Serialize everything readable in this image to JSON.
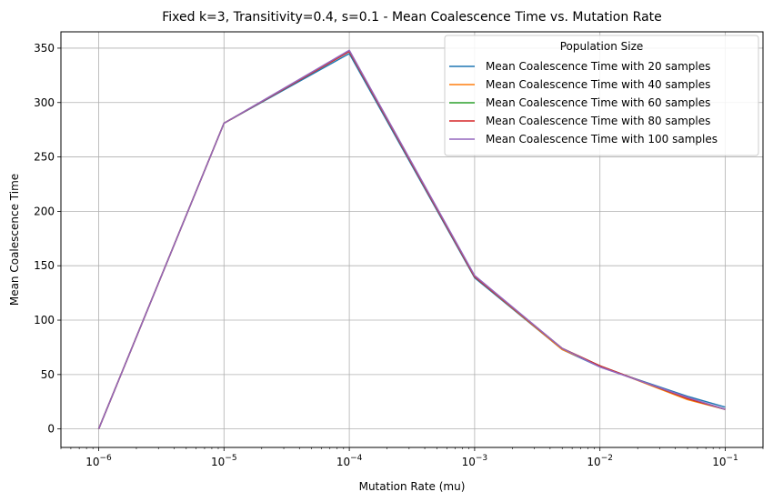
{
  "chart_data": {
    "type": "line",
    "title": "Fixed k=3, Transitivity=0.4, s=0.1 - Mean Coalescence Time vs. Mutation Rate",
    "xlabel": "Mutation Rate (mu)",
    "ylabel": "Mean Coalescence Time",
    "x_scale": "log",
    "xlim": [
      5e-07,
      0.2
    ],
    "ylim": [
      -17,
      365
    ],
    "x": [
      1e-06,
      1e-05,
      0.0001,
      0.001,
      0.005,
      0.01,
      0.05,
      0.1
    ],
    "x_ticks": [
      {
        "value": 1e-06,
        "base": "10",
        "exp": "−6"
      },
      {
        "value": 1e-05,
        "base": "10",
        "exp": "−5"
      },
      {
        "value": 0.0001,
        "base": "10",
        "exp": "−4"
      },
      {
        "value": 0.001,
        "base": "10",
        "exp": "−3"
      },
      {
        "value": 0.01,
        "base": "10",
        "exp": "−2"
      },
      {
        "value": 0.1,
        "base": "10",
        "exp": "−1"
      }
    ],
    "y_ticks": [
      0,
      50,
      100,
      150,
      200,
      250,
      300,
      350
    ],
    "grid": true,
    "legend": {
      "title": "Population Size",
      "placement": "top-right"
    },
    "series": [
      {
        "name": "Mean Coalescence Time with 20 samples",
        "color": "#1f77b4",
        "values": [
          0,
          281,
          345,
          139,
          73,
          57,
          30,
          20
        ]
      },
      {
        "name": "Mean Coalescence Time with 40 samples",
        "color": "#ff7f0e",
        "values": [
          0,
          281,
          347,
          140,
          73,
          58,
          27,
          18
        ]
      },
      {
        "name": "Mean Coalescence Time with 60 samples",
        "color": "#2ca02c",
        "values": [
          0,
          281,
          347,
          140,
          74,
          58,
          28,
          18
        ]
      },
      {
        "name": "Mean Coalescence Time with 80 samples",
        "color": "#d62728",
        "values": [
          0,
          281,
          347,
          140,
          74,
          58,
          28,
          18
        ]
      },
      {
        "name": "Mean Coalescence Time with 100 samples",
        "color": "#9467bd",
        "values": [
          0,
          281,
          348,
          141,
          74,
          57,
          29,
          18
        ]
      }
    ]
  }
}
